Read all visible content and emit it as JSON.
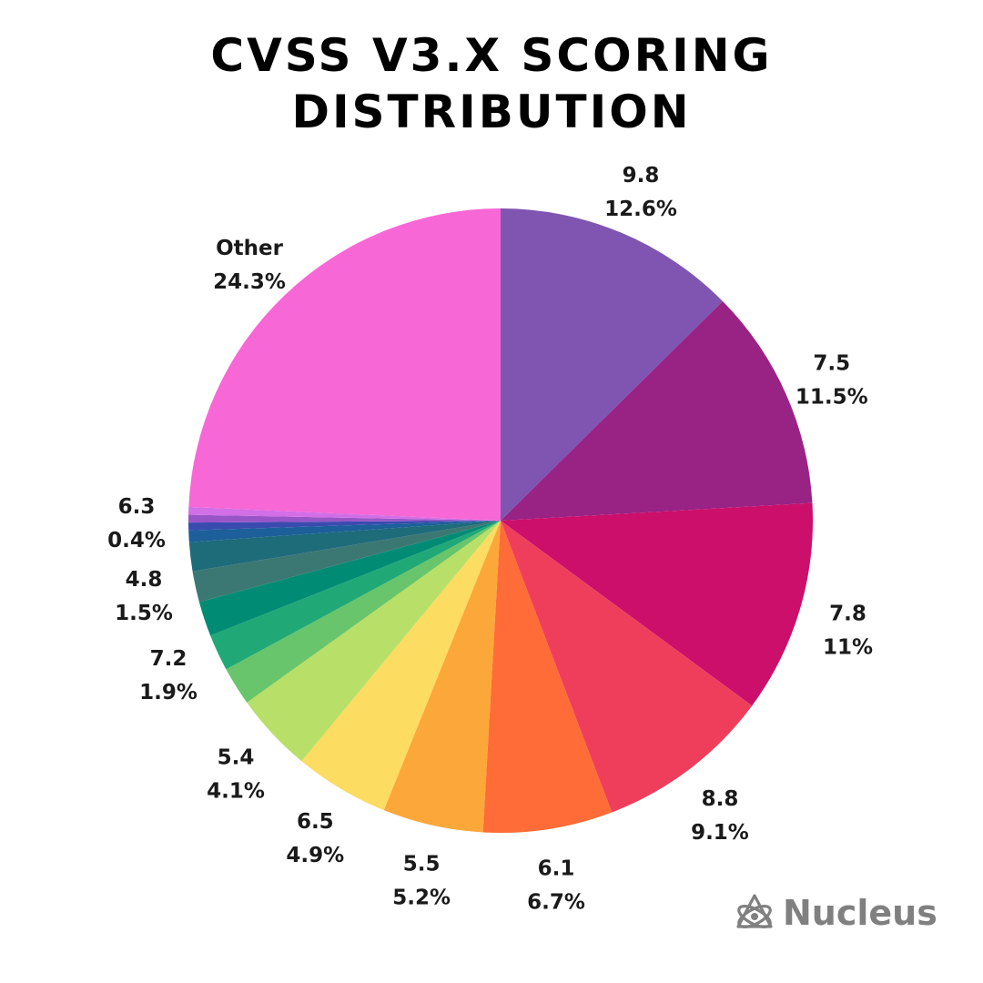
{
  "title": {
    "line1": "CVSS V3.X SCORING",
    "line2": "DISTRIBUTION"
  },
  "brand": {
    "name": "Nucleus",
    "icon": "atom-icon",
    "color": "#808080"
  },
  "chart_data": {
    "type": "pie",
    "title": "CVSS V3.X SCORING DISTRIBUTION",
    "start_angle_deg": 0,
    "direction": "clockwise",
    "slices": [
      {
        "label": "9.8",
        "value": 12.6,
        "display": "12.6%",
        "color": "#7F55B1",
        "labeled": true
      },
      {
        "label": "7.5",
        "value": 11.5,
        "display": "11.5%",
        "color": "#992285",
        "labeled": true
      },
      {
        "label": "7.8",
        "value": 11.0,
        "display": "11%",
        "color": "#CB0F6A",
        "labeled": true
      },
      {
        "label": "8.8",
        "value": 9.1,
        "display": "9.1%",
        "color": "#EF3E5C",
        "labeled": true
      },
      {
        "label": "6.1",
        "value": 6.7,
        "display": "6.7%",
        "color": "#FF6C37",
        "labeled": true
      },
      {
        "label": "5.5",
        "value": 5.2,
        "display": "5.2%",
        "color": "#FCA73A",
        "labeled": true
      },
      {
        "label": "6.5",
        "value": 4.9,
        "display": "4.9%",
        "color": "#FCDC61",
        "labeled": true
      },
      {
        "label": "5.4",
        "value": 4.1,
        "display": "4.1%",
        "color": "#B8E068",
        "labeled": true
      },
      {
        "label": "",
        "value": 2.0,
        "display": "",
        "color": "#68C56B",
        "labeled": false
      },
      {
        "label": "7.2",
        "value": 1.9,
        "display": "1.9%",
        "color": "#20A977",
        "labeled": true
      },
      {
        "label": "",
        "value": 1.8,
        "display": "",
        "color": "#008C74",
        "labeled": false
      },
      {
        "label": "",
        "value": 1.6,
        "display": "",
        "color": "#3B7873",
        "labeled": false
      },
      {
        "label": "4.8",
        "value": 1.5,
        "display": "1.5%",
        "color": "#1E6B7A",
        "labeled": true
      },
      {
        "label": "",
        "value": 0.6,
        "display": "",
        "color": "#1C5F9A",
        "labeled": false
      },
      {
        "label": "",
        "value": 0.4,
        "display": "",
        "color": "#3A4BAF",
        "labeled": false
      },
      {
        "label": "",
        "value": 0.4,
        "display": "",
        "color": "#9955C8",
        "labeled": false
      },
      {
        "label": "6.3",
        "value": 0.4,
        "display": "0.4%",
        "color": "#D26EE6",
        "labeled": true
      },
      {
        "label": "Other",
        "value": 24.3,
        "display": "24.3%",
        "color": "#F767D6",
        "labeled": true
      }
    ]
  }
}
